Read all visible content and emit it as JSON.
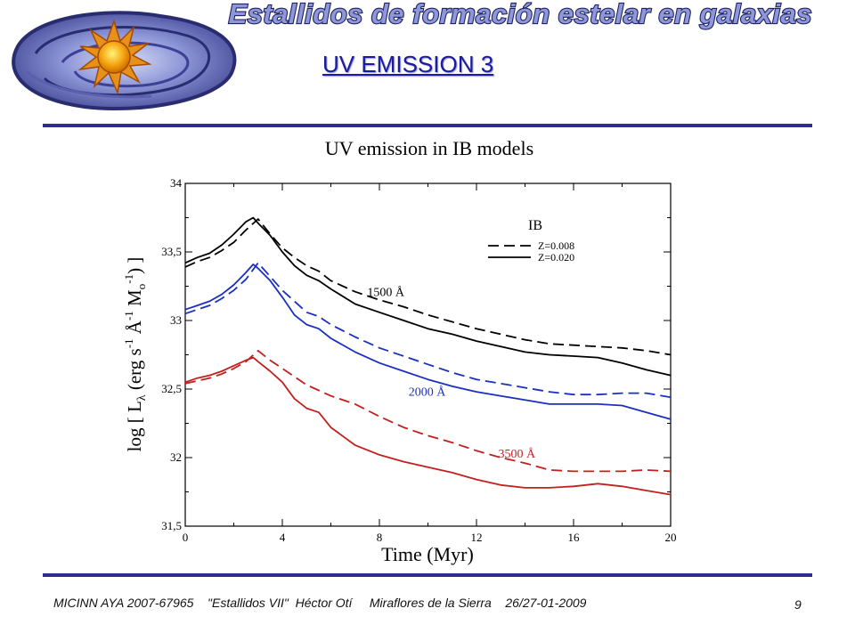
{
  "header": {
    "banner_text": "Estallidos de formación estelar en galaxias",
    "slide_title": "UV EMISSION 3"
  },
  "footer": {
    "text": "MICINN AYA 2007-67965    \"Estallidos VII\"  Héctor Otí     Miraflores de la Sierra    26/27-01-2009",
    "page_number": "9"
  },
  "colors": {
    "accent": "#2e2e8a",
    "banner_fill": "#8e97d8",
    "series_black": "#000000",
    "series_blue": "#1b2fc1",
    "series_red": "#c41f1f"
  },
  "chart_data": {
    "type": "line",
    "title": "UV emission in IB models",
    "xlabel": "Time (Myr)",
    "ylabel": "log [ Lλ (erg s-1 Å-1 Mo-1) ]",
    "xlim": [
      0,
      20
    ],
    "ylim": [
      31.5,
      34
    ],
    "xticks": [
      "0",
      "4",
      "8",
      "12",
      "16",
      "20"
    ],
    "yticks": [
      "31,5",
      "32",
      "32,5",
      "33",
      "33,5",
      "34"
    ],
    "legend": {
      "title": "IB",
      "position": "top-right",
      "entries": [
        {
          "label": "Z=0.008",
          "style": "dashed"
        },
        {
          "label": "Z=0.020",
          "style": "solid"
        }
      ]
    },
    "annotations": [
      {
        "text": "1500 Å",
        "x": 7.5,
        "y": 33.18,
        "color": "#000000"
      },
      {
        "text": "2000 Å",
        "x": 9.2,
        "y": 32.45,
        "color": "#1b2fc1"
      },
      {
        "text": "3500 Å",
        "x": 12.9,
        "y": 32.0,
        "color": "#c41f1f"
      }
    ],
    "series": [
      {
        "wavelength": "1500 Å",
        "metallicity": "Z=0.008",
        "style": "dashed",
        "color": "#000000",
        "x": [
          0,
          0.5,
          1,
          1.5,
          2,
          2.5,
          3,
          3.5,
          4,
          4.5,
          5,
          5.5,
          6,
          7,
          8,
          9,
          10,
          11,
          12,
          13,
          14,
          15,
          16,
          17,
          18,
          19,
          20
        ],
        "y": [
          33.39,
          33.43,
          33.46,
          33.51,
          33.57,
          33.66,
          33.74,
          33.63,
          33.53,
          33.46,
          33.4,
          33.36,
          33.29,
          33.21,
          33.15,
          33.1,
          33.04,
          32.99,
          32.94,
          32.9,
          32.86,
          32.83,
          32.82,
          32.81,
          32.8,
          32.78,
          32.75
        ]
      },
      {
        "wavelength": "1500 Å",
        "metallicity": "Z=0.020",
        "style": "solid",
        "color": "#000000",
        "x": [
          0,
          0.5,
          1,
          1.5,
          2,
          2.5,
          2.8,
          3,
          3.5,
          4,
          4.5,
          5,
          5.5,
          6,
          7,
          8,
          9,
          10,
          11,
          12,
          13,
          14,
          15,
          16,
          17,
          18,
          19,
          20
        ],
        "y": [
          33.42,
          33.46,
          33.49,
          33.55,
          33.63,
          33.72,
          33.75,
          33.71,
          33.62,
          33.5,
          33.4,
          33.33,
          33.29,
          33.23,
          33.12,
          33.06,
          33.0,
          32.94,
          32.9,
          32.85,
          32.81,
          32.77,
          32.75,
          32.74,
          32.73,
          32.69,
          32.64,
          32.6
        ]
      },
      {
        "wavelength": "2000 Å",
        "metallicity": "Z=0.008",
        "style": "dashed",
        "color": "#1b2fc1",
        "x": [
          0,
          0.5,
          1,
          1.5,
          2,
          2.5,
          3,
          3.5,
          4,
          4.5,
          5,
          5.5,
          6,
          7,
          8,
          9,
          10,
          11,
          12,
          13,
          14,
          15,
          16,
          17,
          18,
          19,
          20
        ],
        "y": [
          33.05,
          33.08,
          33.11,
          33.16,
          33.22,
          33.3,
          33.42,
          33.32,
          33.22,
          33.14,
          33.06,
          33.03,
          32.97,
          32.88,
          32.8,
          32.74,
          32.68,
          32.62,
          32.57,
          32.54,
          32.51,
          32.48,
          32.46,
          32.46,
          32.47,
          32.47,
          32.44
        ]
      },
      {
        "wavelength": "2000 Å",
        "metallicity": "Z=0.020",
        "style": "solid",
        "color": "#1b2fc1",
        "x": [
          0,
          0.5,
          1,
          1.5,
          2,
          2.5,
          2.8,
          3,
          3.5,
          4,
          4.5,
          5,
          5.5,
          6,
          7,
          8,
          9,
          10,
          11,
          12,
          13,
          14,
          15,
          16,
          17,
          18,
          19,
          20
        ],
        "y": [
          33.08,
          33.11,
          33.14,
          33.19,
          33.26,
          33.35,
          33.41,
          33.38,
          33.29,
          33.17,
          33.04,
          32.97,
          32.94,
          32.87,
          32.77,
          32.69,
          32.63,
          32.57,
          32.52,
          32.48,
          32.45,
          32.42,
          32.39,
          32.39,
          32.39,
          32.38,
          32.33,
          32.28
        ]
      },
      {
        "wavelength": "3500 Å",
        "metallicity": "Z=0.008",
        "style": "dashed",
        "color": "#c41f1f",
        "x": [
          0,
          0.5,
          1,
          1.5,
          2,
          2.5,
          3,
          3.5,
          4,
          4.5,
          5,
          5.5,
          6,
          7,
          8,
          9,
          10,
          11,
          12,
          13,
          14,
          15,
          16,
          17,
          18,
          19,
          20
        ],
        "y": [
          32.54,
          32.56,
          32.58,
          32.61,
          32.65,
          32.7,
          32.78,
          32.71,
          32.65,
          32.59,
          32.53,
          32.49,
          32.45,
          32.39,
          32.3,
          32.22,
          32.16,
          32.11,
          32.05,
          32.0,
          31.96,
          31.91,
          31.9,
          31.9,
          31.9,
          31.91,
          31.9
        ]
      },
      {
        "wavelength": "3500 Å",
        "metallicity": "Z=0.020",
        "style": "solid",
        "color": "#c41f1f",
        "x": [
          0,
          0.5,
          1,
          1.5,
          2,
          2.5,
          2.8,
          3,
          3.5,
          4,
          4.5,
          5,
          5.5,
          6,
          7,
          8,
          9,
          10,
          11,
          12,
          13,
          14,
          15,
          16,
          17,
          18,
          19,
          20
        ],
        "y": [
          32.55,
          32.58,
          32.6,
          32.63,
          32.67,
          32.71,
          32.73,
          32.7,
          32.63,
          32.55,
          32.43,
          32.36,
          32.33,
          32.22,
          32.09,
          32.02,
          31.97,
          31.93,
          31.89,
          31.84,
          31.8,
          31.78,
          31.78,
          31.79,
          31.81,
          31.79,
          31.76,
          31.73
        ]
      }
    ]
  }
}
